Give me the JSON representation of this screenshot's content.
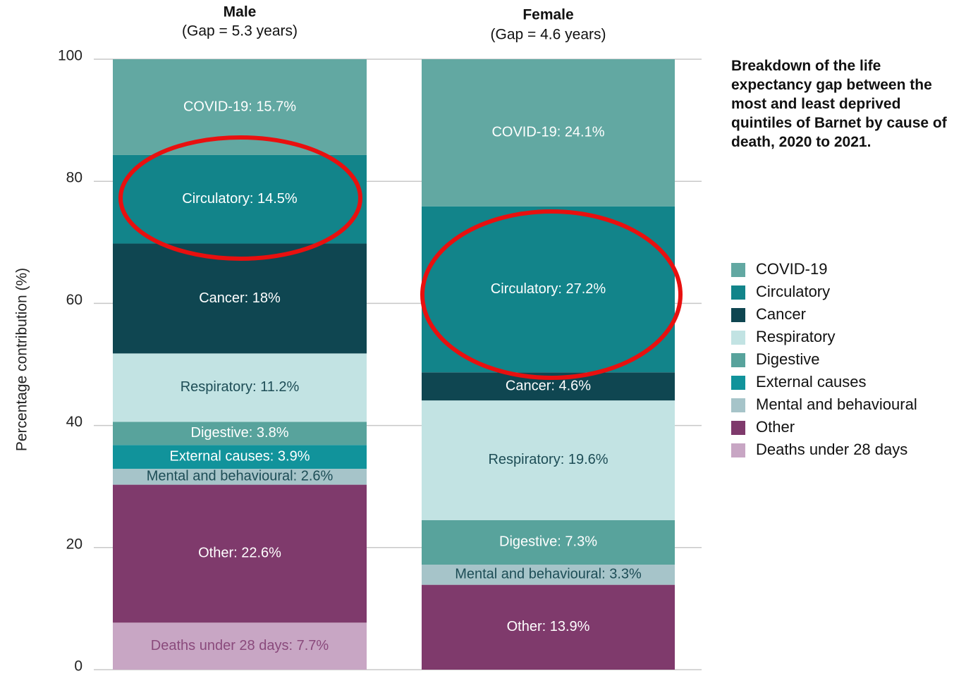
{
  "chart_data": {
    "type": "stacked_bar",
    "title": "Breakdown of the life expectancy gap between the most and least deprived quintiles of Barnet by cause of death, 2020 to 2021.",
    "y_label": "Percentage contribution (%)",
    "categories": [
      "Male",
      "Female"
    ],
    "category_notes": [
      "(Gap = 5.3 years)",
      "(Gap = 4.6 years)"
    ],
    "ylim": [
      0,
      100
    ],
    "yticks": [
      0,
      20,
      40,
      60,
      80,
      100
    ],
    "grid": true,
    "legend": "right",
    "series": [
      {
        "name": "COVID-19",
        "color": "#62a8a2",
        "label_color": "#ffffff",
        "values": [
          15.7,
          24.1
        ],
        "value_labels": [
          "COVID-19: 15.7%",
          "COVID-19: 24.1%"
        ]
      },
      {
        "name": "Circulatory",
        "color": "#12848a",
        "label_color": "#ffffff",
        "values": [
          14.5,
          27.2
        ],
        "value_labels": [
          "Circulatory: 14.5%",
          "Circulatory: 27.2%"
        ]
      },
      {
        "name": "Cancer",
        "color": "#0f4651",
        "label_color": "#ffffff",
        "values": [
          18,
          4.6
        ],
        "value_labels": [
          "Cancer: 18%",
          "Cancer: 4.6%"
        ]
      },
      {
        "name": "Respiratory",
        "color": "#c2e3e3",
        "label_color": "#1d4d56",
        "values": [
          11.2,
          19.6
        ],
        "value_labels": [
          "Respiratory: 11.2%",
          "Respiratory: 19.6%"
        ]
      },
      {
        "name": "Digestive",
        "color": "#58a39c",
        "label_color": "#ffffff",
        "values": [
          3.8,
          7.3
        ],
        "value_labels": [
          "Digestive: 3.8%",
          "Digestive: 7.3%"
        ]
      },
      {
        "name": "External causes",
        "color": "#11939b",
        "label_color": "#ffffff",
        "values": [
          3.9,
          null
        ],
        "value_labels": [
          "External causes: 3.9%",
          null
        ]
      },
      {
        "name": "Mental and behavioural",
        "color": "#a6c4c9",
        "label_color": "#1d4d56",
        "values": [
          2.6,
          3.3
        ],
        "value_labels": [
          "Mental and behavioural: 2.6%",
          "Mental and behavioural: 3.3%"
        ]
      },
      {
        "name": "Other",
        "color": "#7f3a6c",
        "label_color": "#ffffff",
        "values": [
          22.6,
          13.9
        ],
        "value_labels": [
          "Other: 22.6%",
          "Other: 13.9%"
        ]
      },
      {
        "name": "Deaths under 28 days",
        "color": "#c8a6c4",
        "label_color": "#8a4a7c",
        "values": [
          7.7,
          null
        ],
        "value_labels": [
          "Deaths under 28 days: 7.7%",
          null
        ]
      }
    ]
  }
}
